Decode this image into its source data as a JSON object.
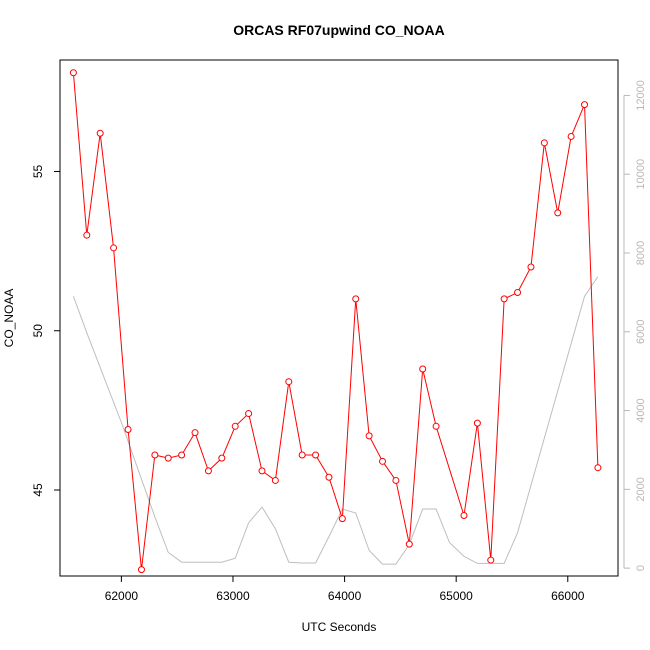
{
  "chart_data": {
    "type": "line",
    "title": "ORCAS RF07upwind CO_NOAA",
    "xlabel": "UTC Seconds",
    "ylabel": "CO_NOAA",
    "xlim": [
      61450,
      66450
    ],
    "ylim": [
      42.3,
      58.5
    ],
    "y2lim": [
      -200,
      12900
    ],
    "x_ticks": [
      62000,
      63000,
      64000,
      65000,
      66000
    ],
    "y_ticks": [
      45,
      50,
      55
    ],
    "y2_ticks": [
      0,
      2000,
      4000,
      6000,
      8000,
      10000,
      12000
    ],
    "colors": {
      "primary": "#ff0000",
      "secondary": "#bebebe",
      "axis": "#000000",
      "axis_right": "#b8b8b8"
    },
    "series": [
      {
        "axis": "left",
        "marker": "open-circle",
        "x": [
          61570,
          61690,
          61810,
          61930,
          62060,
          62180,
          62300,
          62420,
          62540,
          62660,
          62780,
          62900,
          63020,
          63140,
          63260,
          63380,
          63500,
          63620,
          63740,
          63860,
          63980,
          64100,
          64220,
          64340,
          64460,
          64580,
          64700,
          64820,
          65070,
          65190,
          65310,
          65430,
          65550,
          65670,
          65790,
          65910,
          66030,
          66150,
          66270
        ],
        "values": [
          58.1,
          53.0,
          56.2,
          52.6,
          46.9,
          42.5,
          46.1,
          46.0,
          46.1,
          46.8,
          45.6,
          46.0,
          47.0,
          47.4,
          45.6,
          45.3,
          48.4,
          46.1,
          46.1,
          45.4,
          44.1,
          51.0,
          46.7,
          45.9,
          45.3,
          43.3,
          48.8,
          47.0,
          44.2,
          47.1,
          42.8,
          51.0,
          51.2,
          52.0,
          55.9,
          53.7,
          56.1,
          57.1,
          45.7
        ]
      },
      {
        "axis": "right",
        "x": [
          61570,
          61700,
          61850,
          62000,
          62150,
          62300,
          62420,
          62540,
          62660,
          62780,
          62900,
          63020,
          63140,
          63260,
          63380,
          63500,
          63620,
          63740,
          63860,
          63980,
          64100,
          64220,
          64340,
          64460,
          64580,
          64700,
          64820,
          64940,
          65070,
          65190,
          65310,
          65430,
          65550,
          65670,
          65790,
          65910,
          66030,
          66150,
          66270
        ],
        "values": [
          6900,
          5900,
          4800,
          3700,
          2500,
          1300,
          400,
          150,
          150,
          150,
          150,
          250,
          1150,
          1550,
          1000,
          150,
          130,
          130,
          800,
          1500,
          1400,
          450,
          100,
          100,
          600,
          1500,
          1500,
          650,
          300,
          120,
          120,
          120,
          900,
          2100,
          3300,
          4500,
          5700,
          6900,
          7400
        ]
      }
    ]
  }
}
